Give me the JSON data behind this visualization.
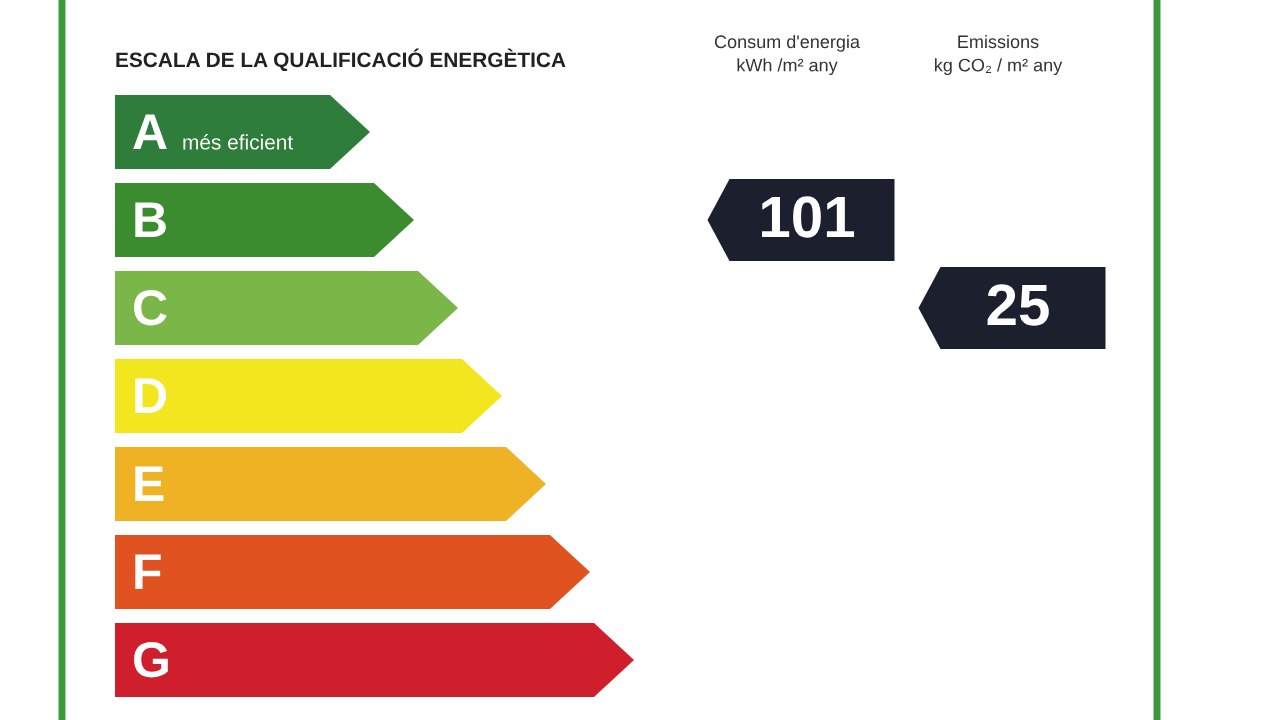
{
  "chart_data": {
    "type": "other",
    "title": "ESCALA DE LA QUALIFICACIÓ ENERGÈTICA",
    "categories": [
      "A",
      "B",
      "C",
      "D",
      "E",
      "F",
      "G"
    ],
    "colors": [
      "#2e7d3a",
      "#3b8c2e",
      "#7ab648",
      "#f2e61e",
      "#efb224",
      "#e0521f",
      "#cf1f2c"
    ],
    "annotations": [
      "més eficient",
      "Consum d'energia\nkWh /m² any",
      "Emissions\nkg CO₂ / m² any"
    ],
    "data_labels": true,
    "series": [
      {
        "color": "#1c1f2e",
        "values": [
          null,
          101,
          null,
          null,
          null,
          null,
          null
        ]
      },
      {
        "color": "#1c1f2e",
        "values": [
          null,
          null,
          25,
          null,
          null,
          null,
          null
        ]
      }
    ]
  }
}
